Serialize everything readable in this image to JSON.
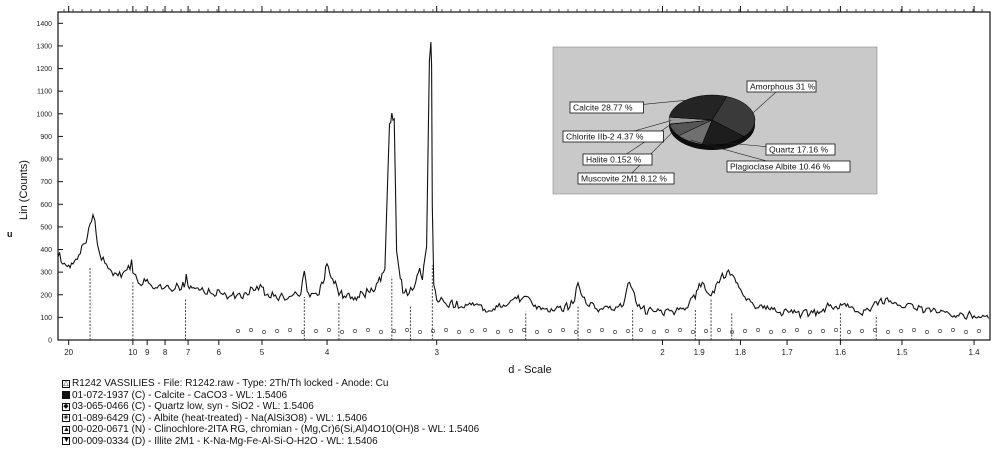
{
  "chart_data": {
    "type": "line",
    "title": "",
    "xlabel": "d - Scale",
    "ylabel": "Lin (Counts)",
    "y_tick_labels": [
      "0",
      "100",
      "200",
      "300",
      "400",
      "500",
      "600",
      "700",
      "800",
      "900",
      "1000",
      "1100",
      "1200",
      "1300",
      "1400"
    ],
    "ylim": [
      0,
      1450
    ],
    "x_tick_labels": [
      "20",
      "10",
      "9",
      "8",
      "7",
      "6",
      "5",
      "4",
      "3",
      "2",
      "1.9",
      "1.8",
      "1.7",
      "1.6",
      "1.5",
      "1.4"
    ],
    "x_tick_values": [
      20,
      10,
      9,
      8,
      7,
      6,
      5,
      4,
      3,
      2,
      1.9,
      1.8,
      1.7,
      1.6,
      1.5,
      1.4
    ],
    "xlim_d": [
      24,
      1.38
    ],
    "series": [
      {
        "values_d": [
          24,
          22,
          20,
          18,
          16,
          15,
          14.5,
          14.2,
          14,
          13.8,
          13.5,
          13,
          12,
          11,
          10.5,
          10.1,
          10,
          9.9,
          9.5,
          9,
          8.5,
          8,
          7.6,
          7.2,
          7.1,
          7.07,
          7.0,
          6.8,
          6.5,
          6.4,
          6.2,
          6,
          5.7,
          5.4,
          5.1,
          5,
          4.95,
          4.7,
          4.5,
          4.35,
          4.3,
          4.26,
          4.2,
          4.1,
          4.05,
          4.0,
          3.9,
          3.86,
          3.8,
          3.7,
          3.6,
          3.55,
          3.5,
          3.45,
          3.4,
          3.36,
          3.34,
          3.32,
          3.3,
          3.27,
          3.25,
          3.2,
          3.15,
          3.12,
          3.1,
          3.07,
          3.05,
          3.04,
          3.035,
          3.03,
          3.02,
          3.0,
          2.98,
          2.95,
          2.9,
          2.85,
          2.8,
          2.75,
          2.7,
          2.6,
          2.55,
          2.5,
          2.49,
          2.47,
          2.45,
          2.4,
          2.35,
          2.3,
          2.28,
          2.25,
          2.2,
          2.15,
          2.12,
          2.1,
          2.08,
          2.05,
          2.0,
          1.98,
          1.95,
          1.93,
          1.91,
          1.9,
          1.88,
          1.87,
          1.85,
          1.82,
          1.8,
          1.78,
          1.75,
          1.72,
          1.7,
          1.68,
          1.65,
          1.62,
          1.6,
          1.58,
          1.56,
          1.54,
          1.52,
          1.5,
          1.48,
          1.46,
          1.44,
          1.42,
          1.4,
          1.38
        ],
        "values_counts": [
          380,
          350,
          330,
          360,
          420,
          500,
          540,
          520,
          480,
          430,
          390,
          350,
          300,
          290,
          300,
          340,
          300,
          280,
          260,
          250,
          240,
          230,
          230,
          240,
          250,
          290,
          240,
          220,
          215,
          212,
          210,
          205,
          195,
          200,
          230,
          250,
          200,
          190,
          185,
          210,
          300,
          220,
          200,
          205,
          260,
          330,
          250,
          210,
          195,
          190,
          200,
          215,
          220,
          260,
          330,
          940,
          1000,
          980,
          400,
          280,
          220,
          210,
          240,
          330,
          260,
          420,
          1250,
          1320,
          1200,
          600,
          260,
          190,
          175,
          165,
          160,
          155,
          150,
          145,
          140,
          145,
          175,
          200,
          190,
          165,
          150,
          140,
          135,
          160,
          240,
          165,
          135,
          130,
          160,
          270,
          170,
          130,
          125,
          125,
          135,
          160,
          200,
          250,
          225,
          180,
          270,
          300,
          230,
          170,
          135,
          130,
          120,
          115,
          120,
          150,
          150,
          140,
          120,
          165,
          180,
          150,
          140,
          125,
          115,
          110,
          110,
          110
        ]
      }
    ],
    "peak_markers": [
      {
        "d": 15.0,
        "h": 320
      },
      {
        "d": 10.0,
        "h": 255
      },
      {
        "d": 7.1,
        "h": 185
      },
      {
        "d": 4.3,
        "h": 190
      },
      {
        "d": 3.86,
        "h": 170
      },
      {
        "d": 3.34,
        "h": 280
      },
      {
        "d": 3.03,
        "h": 330
      },
      {
        "d": 3.19,
        "h": 150
      },
      {
        "d": 2.5,
        "h": 125
      },
      {
        "d": 2.28,
        "h": 150
      },
      {
        "d": 2.09,
        "h": 140
      },
      {
        "d": 1.91,
        "h": 140
      },
      {
        "d": 1.87,
        "h": 180
      },
      {
        "d": 1.82,
        "h": 120
      },
      {
        "d": 1.6,
        "h": 120
      },
      {
        "d": 1.54,
        "h": 110
      }
    ],
    "pie": {
      "slices": [
        {
          "label": "Amorphous 31 %",
          "value": 31,
          "color": "#3a3a3a"
        },
        {
          "label": "Quartz 17.16 %",
          "value": 17.16,
          "color": "#1d1d1d"
        },
        {
          "label": "Plagioclase Albite 10.46 %",
          "value": 10.46,
          "color": "#707070"
        },
        {
          "label": "Muscovite 2M1 8.12 %",
          "value": 8.12,
          "color": "#555555"
        },
        {
          "label": "Halite 0.152 %",
          "value": 0.152,
          "color": "#cccccc"
        },
        {
          "label": "Chlorite IIb-2 4.37 %",
          "value": 4.37,
          "color": "#999999"
        },
        {
          "label": "Calcite 28.77 %",
          "value": 28.77,
          "color": "#242424"
        }
      ]
    }
  },
  "side_mark": "u",
  "legend": [
    {
      "icon": "triangle-outline",
      "text": "R1242  VASSILIES  - File: R1242.raw - Type: 2Th/Th locked - Anode: Cu"
    },
    {
      "icon": "square-filled",
      "text": "01-072-1937 (C) - Calcite - CaCO3 - WL: 1.5406"
    },
    {
      "icon": "diamond",
      "text": "03-065-0466 (C) - Quartz low, syn - SiO2 - WL: 1.5406"
    },
    {
      "icon": "diamond-dot",
      "text": "01-089-6429 (C) - Albite (heat-treated) - Na(AlSi3O8) - WL: 1.5406"
    },
    {
      "icon": "triangle-up",
      "text": "00-020-0671 (N) - Clinochlore-2ITA RG, chromian - (Mg,Cr)6(Si,Al)4O10(OH)8 - WL: 1.5406"
    },
    {
      "icon": "triangle-down",
      "text": "00-009-0334 (D) - Illite 2M1 - K-Na-Mg-Fe-Al-Si-O-H2O - WL: 1.5406"
    }
  ]
}
